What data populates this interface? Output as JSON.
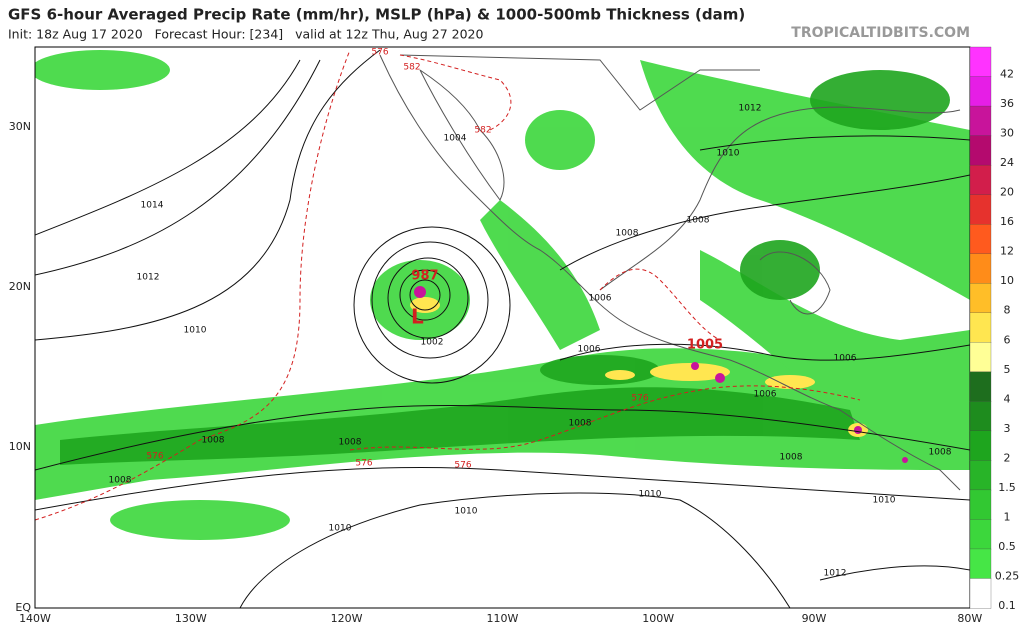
{
  "header": {
    "title": "GFS 6-hour Averaged Precip Rate (mm/hr), MSLP (hPa) & 1000-500mb Thickness (dam)",
    "subtitle": "Init: 18z Aug 17 2020   Forecast Hour: [234]   valid at 12z Thu, Aug 27 2020",
    "credit": "TROPICALTIDBITS.COM"
  },
  "map": {
    "lat_labels": [
      "30N",
      "20N",
      "10N",
      "EQ"
    ],
    "lon_labels": [
      "140W",
      "130W",
      "120W",
      "110W",
      "100W",
      "90W",
      "80W"
    ],
    "contour_labels": [
      "1014",
      "1012",
      "1010",
      "1010",
      "1010",
      "1010",
      "1010",
      "1008",
      "1008",
      "1008",
      "1008",
      "1008",
      "1008",
      "1008",
      "1008",
      "1006",
      "1006",
      "1006",
      "1006",
      "1004",
      "1002",
      "1012",
      "1012",
      "1010",
      "987",
      "1005",
      "576",
      "576",
      "576",
      "576",
      "576",
      "582",
      "582"
    ]
  },
  "colorbar": {
    "labels": [
      "42",
      "36",
      "30",
      "24",
      "20",
      "16",
      "12",
      "10",
      "8",
      "6",
      "5",
      "4",
      "3",
      "2",
      "1.5",
      "1",
      "0.5",
      "0.25",
      "0.1"
    ],
    "colors": [
      "#ff33ff",
      "#e61ee6",
      "#c8149b",
      "#b40a6e",
      "#d21e4b",
      "#e6322d",
      "#ff5a1e",
      "#ff8c19",
      "#ffbe28",
      "#ffe650",
      "#ffff96",
      "#1e6e1e",
      "#1e8c1e",
      "#1ea51e",
      "#28b428",
      "#32c832",
      "#3cd73c",
      "#46e646",
      "#ffffff"
    ]
  }
}
